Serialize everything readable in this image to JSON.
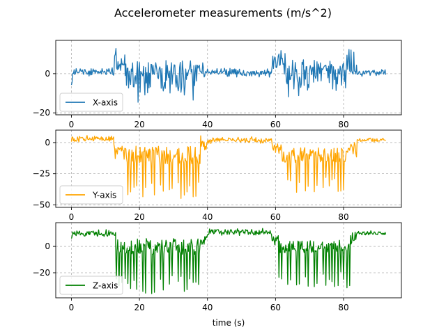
{
  "figure": {
    "title": "Accelerometer measurements (m/s^2)"
  },
  "chart_data": [
    {
      "type": "line",
      "legend": "lower-left",
      "grid": true,
      "grid_style": "dashed",
      "xlim": [
        -4.6,
        97
      ],
      "ylim": [
        -21,
        17
      ],
      "xticks": [
        0,
        20,
        40,
        60,
        80
      ],
      "yticks": [
        -20,
        0
      ],
      "xlabel": "",
      "series": [
        {
          "name": "X-axis",
          "color": "#1f77b4",
          "segments": [
            {
              "t0": 0,
              "t1": 0.8,
              "base": -1,
              "pos": 3,
              "neg": 7
            },
            {
              "t0": 0.8,
              "t1": 12.5,
              "base": 1,
              "pos": 2.5,
              "neg": 2.5
            },
            {
              "t0": 12.5,
              "t1": 15.8,
              "base": 6,
              "pos": 8,
              "neg": 6
            },
            {
              "t0": 15.8,
              "t1": 37,
              "base": 0,
              "pos": 9,
              "neg": 16
            },
            {
              "t0": 37,
              "t1": 39,
              "base": 2,
              "pos": 5,
              "neg": 4
            },
            {
              "t0": 39,
              "t1": 59,
              "base": 0.5,
              "pos": 2.5,
              "neg": 2.5
            },
            {
              "t0": 59,
              "t1": 63,
              "base": 5,
              "pos": 8,
              "neg": 7
            },
            {
              "t0": 63,
              "t1": 81,
              "base": 0,
              "pos": 8,
              "neg": 14
            },
            {
              "t0": 81,
              "t1": 84,
              "base": 3,
              "pos": 11,
              "neg": 4
            },
            {
              "t0": 84,
              "t1": 92.5,
              "base": 0.5,
              "pos": 2,
              "neg": 2
            }
          ]
        }
      ]
    },
    {
      "type": "line",
      "legend": "lower-left",
      "grid": true,
      "grid_style": "dashed",
      "xlim": [
        -4.6,
        97
      ],
      "ylim": [
        -52,
        10
      ],
      "xticks": [
        0,
        20,
        40,
        60,
        80
      ],
      "yticks": [
        -50,
        -25,
        0
      ],
      "xlabel": "",
      "series": [
        {
          "name": "Y-axis",
          "color": "#ffa500",
          "segments": [
            {
              "t0": 0,
              "t1": 12.5,
              "base": 3,
              "pos": 3,
              "neg": 3
            },
            {
              "t0": 12.5,
              "t1": 16,
              "base": -5,
              "pos": 5,
              "neg": 10
            },
            {
              "t0": 16,
              "t1": 38,
              "base": -10,
              "pos": 12,
              "neg": 36,
              "spikes": true
            },
            {
              "t0": 38,
              "t1": 40,
              "base": 0,
              "pos": 6,
              "neg": 6
            },
            {
              "t0": 40,
              "t1": 59,
              "base": 2,
              "pos": 3,
              "neg": 3
            },
            {
              "t0": 59,
              "t1": 62,
              "base": -4,
              "pos": 8,
              "neg": 8
            },
            {
              "t0": 62,
              "t1": 81,
              "base": -10,
              "pos": 10,
              "neg": 30,
              "spikes": true
            },
            {
              "t0": 81,
              "t1": 84,
              "base": -5,
              "pos": 6,
              "neg": 8
            },
            {
              "t0": 84,
              "t1": 92.5,
              "base": 2,
              "pos": 2,
              "neg": 2
            }
          ]
        }
      ]
    },
    {
      "type": "line",
      "legend": "lower-left",
      "grid": true,
      "grid_style": "dashed",
      "xlim": [
        -4.6,
        97
      ],
      "ylim": [
        -39,
        18
      ],
      "xticks": [
        0,
        20,
        40,
        60,
        80
      ],
      "yticks": [
        -20,
        0
      ],
      "xlabel": "time (s)",
      "series": [
        {
          "name": "Z-axis",
          "color": "#008000",
          "segments": [
            {
              "t0": 0,
              "t1": 0.8,
              "base": 8,
              "pos": 6,
              "neg": 6
            },
            {
              "t0": 0.8,
              "t1": 13,
              "base": 10,
              "pos": 3,
              "neg": 3
            },
            {
              "t0": 13,
              "t1": 38,
              "base": 0,
              "pos": 10,
              "neg": 36,
              "spikes": true
            },
            {
              "t0": 38,
              "t1": 40,
              "base": 5,
              "pos": 6,
              "neg": 6
            },
            {
              "t0": 40,
              "t1": 59,
              "base": 11,
              "pos": 3,
              "neg": 3
            },
            {
              "t0": 59,
              "t1": 61,
              "base": 5,
              "pos": 6,
              "neg": 6
            },
            {
              "t0": 61,
              "t1": 82,
              "base": 0,
              "pos": 8,
              "neg": 32,
              "spikes": true
            },
            {
              "t0": 82,
              "t1": 84,
              "base": 5,
              "pos": 8,
              "neg": 6
            },
            {
              "t0": 84,
              "t1": 92.5,
              "base": 10,
              "pos": 2,
              "neg": 2
            }
          ]
        }
      ]
    }
  ]
}
